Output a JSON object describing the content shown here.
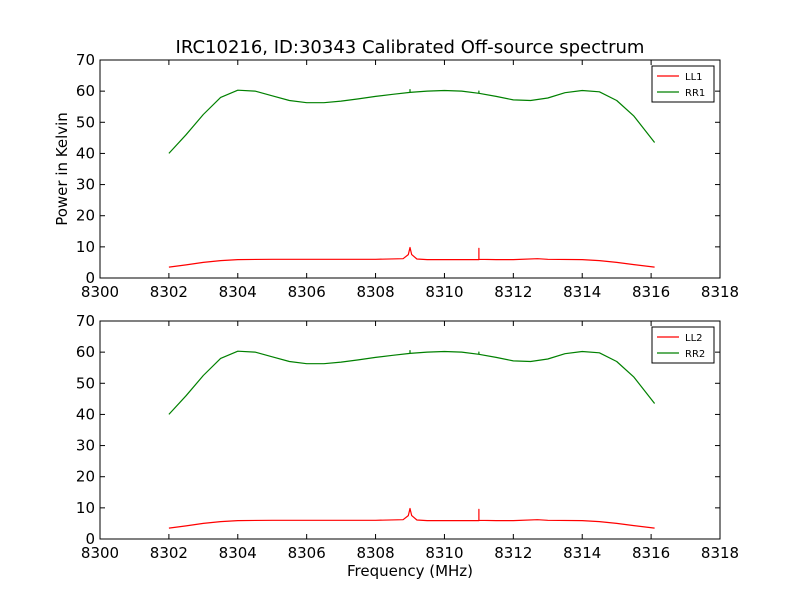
{
  "figure": {
    "title": "IRC10216, ID:30343 Calibrated Off-source spectrum"
  },
  "chart_data": [
    {
      "type": "line",
      "title": "IRC10216, ID:30343 Calibrated Off-source spectrum",
      "xlabel": "",
      "ylabel": "Power in Kelvin",
      "xlim": [
        8300,
        8318
      ],
      "ylim": [
        0,
        70
      ],
      "xticks": [
        8300,
        8302,
        8304,
        8306,
        8308,
        8310,
        8312,
        8314,
        8316,
        8318
      ],
      "yticks": [
        0,
        10,
        20,
        30,
        40,
        50,
        60,
        70
      ],
      "grid": false,
      "legend_position": "top-right",
      "series": [
        {
          "name": "LL1",
          "color": "#ff0000",
          "x": [
            8302.0,
            8302.5,
            8303.0,
            8303.5,
            8304.0,
            8305.0,
            8306.0,
            8307.0,
            8308.0,
            8308.8,
            8308.95,
            8309.0,
            8309.05,
            8309.2,
            8309.5,
            8310.0,
            8311.0,
            8311.0,
            8311.0,
            8311.5,
            8312.0,
            8312.7,
            8313.0,
            8314.0,
            8314.5,
            8315.0,
            8315.5,
            8316.1
          ],
          "y": [
            3.5,
            4.2,
            5.0,
            5.6,
            5.9,
            6.0,
            6.0,
            6.0,
            6.0,
            6.2,
            7.5,
            9.8,
            7.5,
            6.1,
            5.9,
            5.9,
            5.9,
            9.5,
            6.0,
            5.9,
            5.9,
            6.2,
            6.0,
            5.9,
            5.6,
            5.0,
            4.3,
            3.5
          ]
        },
        {
          "name": "RR1",
          "color": "#008000",
          "x": [
            8302.0,
            8302.5,
            8303.0,
            8303.5,
            8304.0,
            8304.5,
            8305.0,
            8305.5,
            8306.0,
            8306.5,
            8307.0,
            8307.5,
            8308.0,
            8308.5,
            8309.0,
            8309.0,
            8309.0,
            8309.5,
            8310.0,
            8310.5,
            8311.0,
            8311.0,
            8311.0,
            8311.5,
            8312.0,
            8312.5,
            8313.0,
            8313.5,
            8314.0,
            8314.5,
            8315.0,
            8315.5,
            8316.1
          ],
          "y": [
            40.0,
            46.0,
            52.5,
            58.0,
            60.3,
            60.0,
            58.5,
            57.0,
            56.3,
            56.3,
            56.8,
            57.5,
            58.3,
            59.0,
            59.6,
            60.5,
            59.6,
            60.0,
            60.2,
            60.0,
            59.3,
            60.0,
            59.3,
            58.3,
            57.2,
            57.0,
            57.8,
            59.5,
            60.2,
            59.8,
            57.0,
            52.0,
            43.5
          ]
        }
      ]
    },
    {
      "type": "line",
      "title": "",
      "xlabel": "Frequency (MHz)",
      "ylabel": "",
      "xlim": [
        8300,
        8318
      ],
      "ylim": [
        0,
        70
      ],
      "xticks": [
        8300,
        8302,
        8304,
        8306,
        8308,
        8310,
        8312,
        8314,
        8316,
        8318
      ],
      "yticks": [
        0,
        10,
        20,
        30,
        40,
        50,
        60,
        70
      ],
      "grid": false,
      "legend_position": "top-right",
      "series": [
        {
          "name": "LL2",
          "color": "#ff0000",
          "x": [
            8302.0,
            8302.5,
            8303.0,
            8303.5,
            8304.0,
            8305.0,
            8306.0,
            8307.0,
            8308.0,
            8308.8,
            8308.95,
            8309.0,
            8309.05,
            8309.2,
            8309.5,
            8310.0,
            8311.0,
            8311.0,
            8311.0,
            8311.5,
            8312.0,
            8312.7,
            8313.0,
            8314.0,
            8314.5,
            8315.0,
            8315.5,
            8316.1
          ],
          "y": [
            3.5,
            4.2,
            5.0,
            5.6,
            5.9,
            6.0,
            6.0,
            6.0,
            6.0,
            6.2,
            7.5,
            9.8,
            7.5,
            6.1,
            5.9,
            5.9,
            5.9,
            9.5,
            6.0,
            5.9,
            5.9,
            6.2,
            6.0,
            5.9,
            5.6,
            5.0,
            4.3,
            3.5
          ]
        },
        {
          "name": "RR2",
          "color": "#008000",
          "x": [
            8302.0,
            8302.5,
            8303.0,
            8303.5,
            8304.0,
            8304.5,
            8305.0,
            8305.5,
            8306.0,
            8306.5,
            8307.0,
            8307.5,
            8308.0,
            8308.5,
            8309.0,
            8309.0,
            8309.0,
            8309.5,
            8310.0,
            8310.5,
            8311.0,
            8311.0,
            8311.0,
            8311.5,
            8312.0,
            8312.5,
            8313.0,
            8313.5,
            8314.0,
            8314.5,
            8315.0,
            8315.5,
            8316.1
          ],
          "y": [
            40.0,
            46.0,
            52.5,
            58.0,
            60.3,
            60.0,
            58.5,
            57.0,
            56.3,
            56.3,
            56.8,
            57.5,
            58.3,
            59.0,
            59.6,
            60.5,
            59.6,
            60.0,
            60.2,
            60.0,
            59.3,
            60.0,
            59.3,
            58.3,
            57.2,
            57.0,
            57.8,
            59.5,
            60.2,
            59.8,
            57.0,
            52.0,
            43.5
          ]
        }
      ]
    }
  ]
}
